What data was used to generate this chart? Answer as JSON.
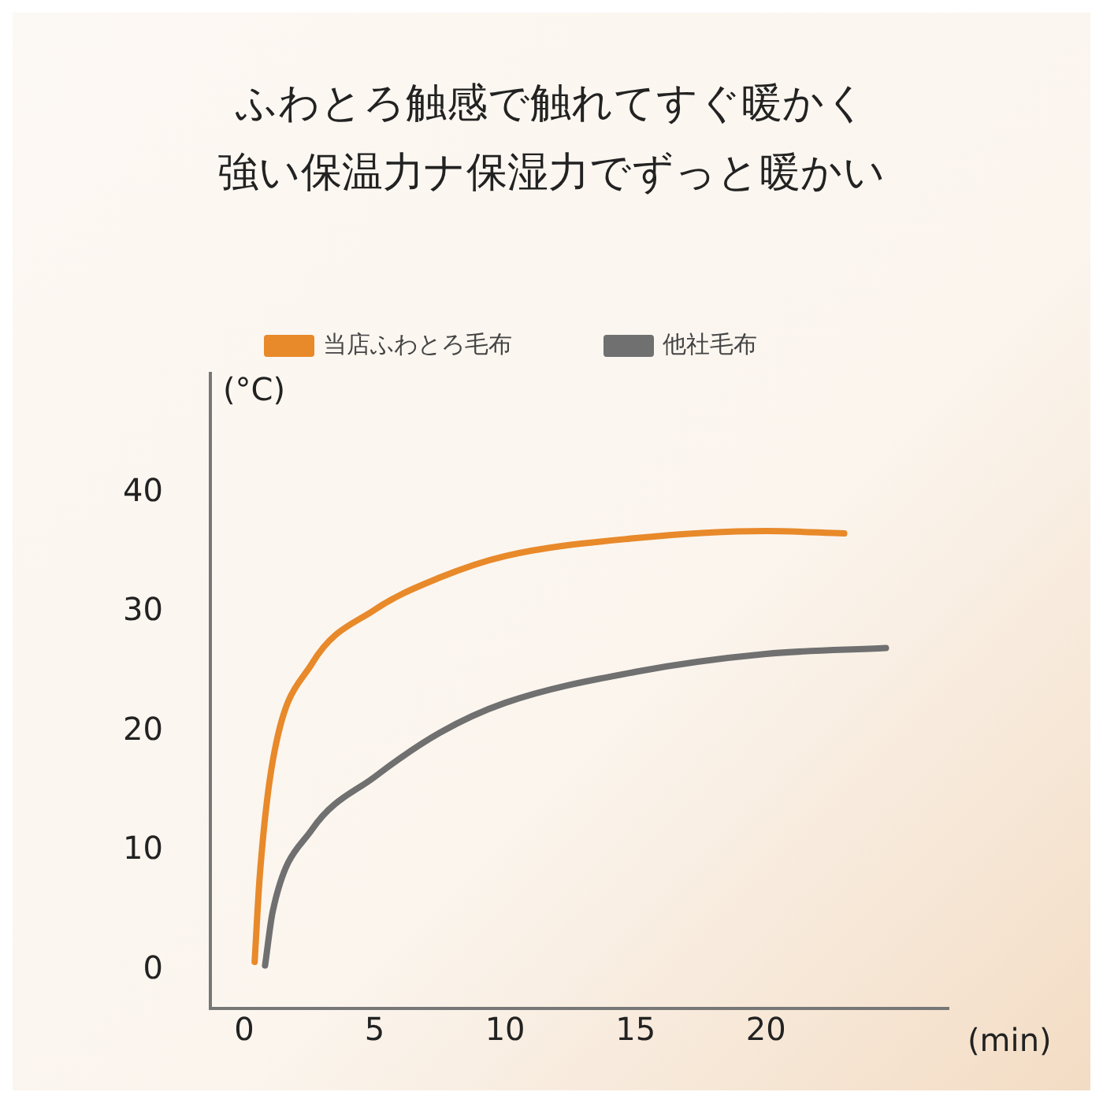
{
  "chart_data": {
    "type": "line",
    "title": "ふわとろ触感で触れてすぐ暖かく",
    "subtitle": "強い保温力ナ保湿力でずっと暖かい",
    "xlabel": "(min)",
    "ylabel": "(°C)",
    "xlim": [
      -1.3,
      27
    ],
    "xticks": [
      0,
      5,
      10,
      15,
      20
    ],
    "ylim": [
      -3.2,
      50
    ],
    "yticks": [
      0,
      10,
      20,
      30,
      40
    ],
    "grid": false,
    "legend": "top",
    "marker": "none",
    "line_style": "solid",
    "series": [
      {
        "name": "当店ふわとろ毛布",
        "color": "#e8892a",
        "x": [
          0.4,
          0.6,
          1.1,
          2.6,
          5,
          7.5,
          10,
          15,
          20,
          23
        ],
        "values": [
          0.7,
          8,
          17.6,
          25.7,
          30.2,
          32.9,
          34.7,
          36.2,
          36.8,
          36.6
        ]
      },
      {
        "name": "他社毛布",
        "color": "#707070",
        "x": [
          0.8,
          1.1,
          2.6,
          5,
          7.5,
          10,
          15,
          20,
          24.6
        ],
        "values": [
          0.4,
          5,
          11.8,
          16.2,
          19.9,
          22.4,
          25,
          26.5,
          27
        ]
      }
    ]
  }
}
